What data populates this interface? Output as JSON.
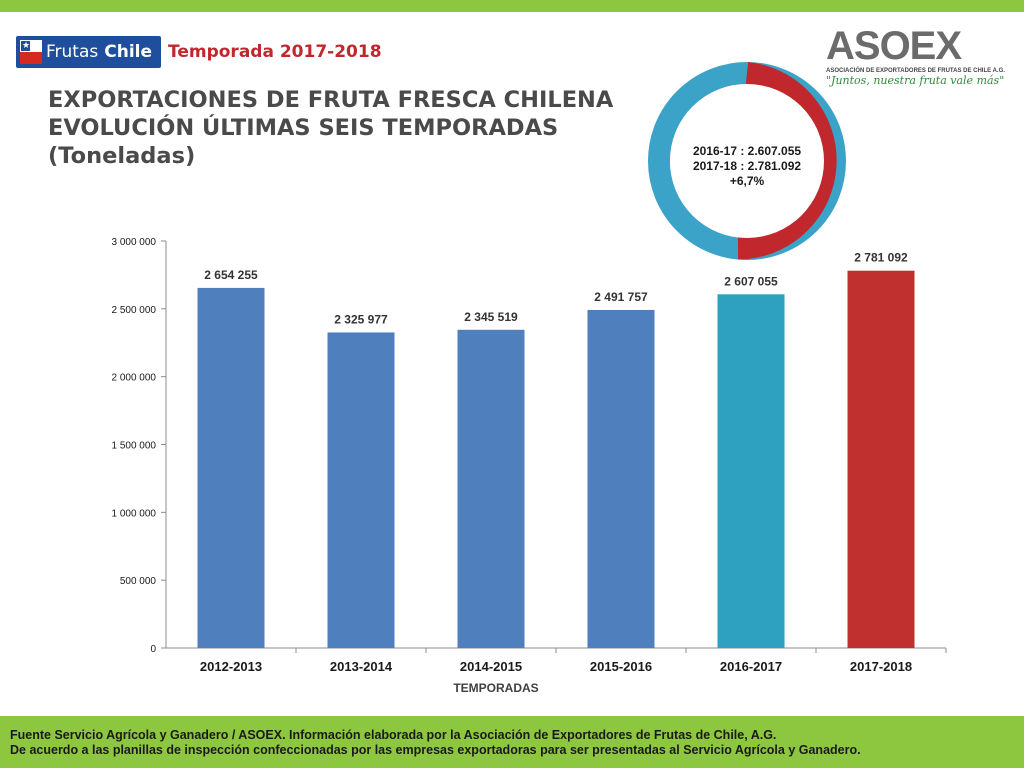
{
  "header": {
    "logo_left_line1": "Frutas",
    "logo_left_line2": "Chile",
    "season": "Temporada 2017-2018",
    "title_line1": "EXPORTACIONES DE FRUTA FRESCA CHILENA",
    "title_line2": "EVOLUCIÓN ÚLTIMAS SEIS TEMPORADAS",
    "title_line3": "(Toneladas)"
  },
  "asoex": {
    "wordmark": "ASOEX",
    "subtitle": "ASOCIACIÓN DE EXPORTADORES DE FRUTAS DE CHILE A.G.",
    "slogan": "\"Juntos, nuestra fruta vale más\""
  },
  "donut": {
    "line1": "2016-17  : 2.607.055",
    "line2": "2017-18  : 2.781.092",
    "line3": "+6,7%",
    "colors": {
      "red": "#c0282d",
      "blue": "#3aa3c7"
    }
  },
  "footer": {
    "line1": "Fuente Servicio Agrícola y Ganadero / ASOEX. Información elaborada por la Asociación de Exportadores de  Frutas de Chile, A.G.",
    "line2": "De acuerdo a las planillas de inspección confeccionadas por las empresas exportadoras  para ser presentadas al Servicio Agrícola y Ganadero."
  },
  "chart_data": {
    "type": "bar",
    "categories": [
      "2012-2013",
      "2013-2014",
      "2014-2015",
      "2015-2016",
      "2016-2017",
      "2017-2018"
    ],
    "values": [
      2654255,
      2325977,
      2345519,
      2491757,
      2607055,
      2781092
    ],
    "data_labels": [
      "2 654 255",
      "2 325 977",
      "2 345 519",
      "2 491 757",
      "2 607 055",
      "2 781 092"
    ],
    "bar_colors": [
      "#4f7fbd",
      "#4f7fbd",
      "#4f7fbd",
      "#4f7fbd",
      "#2ea0c0",
      "#c0302e"
    ],
    "xlabel": "TEMPORADAS",
    "ylabel": "",
    "ylim": [
      0,
      3000000
    ],
    "yticks": [
      0,
      500000,
      1000000,
      1500000,
      2000000,
      2500000,
      3000000
    ],
    "ytick_labels": [
      "0",
      "500 000",
      "1 000 000",
      "1 500 000",
      "2 000 000",
      "2 500 000",
      "3 000 000"
    ],
    "grid": false,
    "legend": "none"
  }
}
